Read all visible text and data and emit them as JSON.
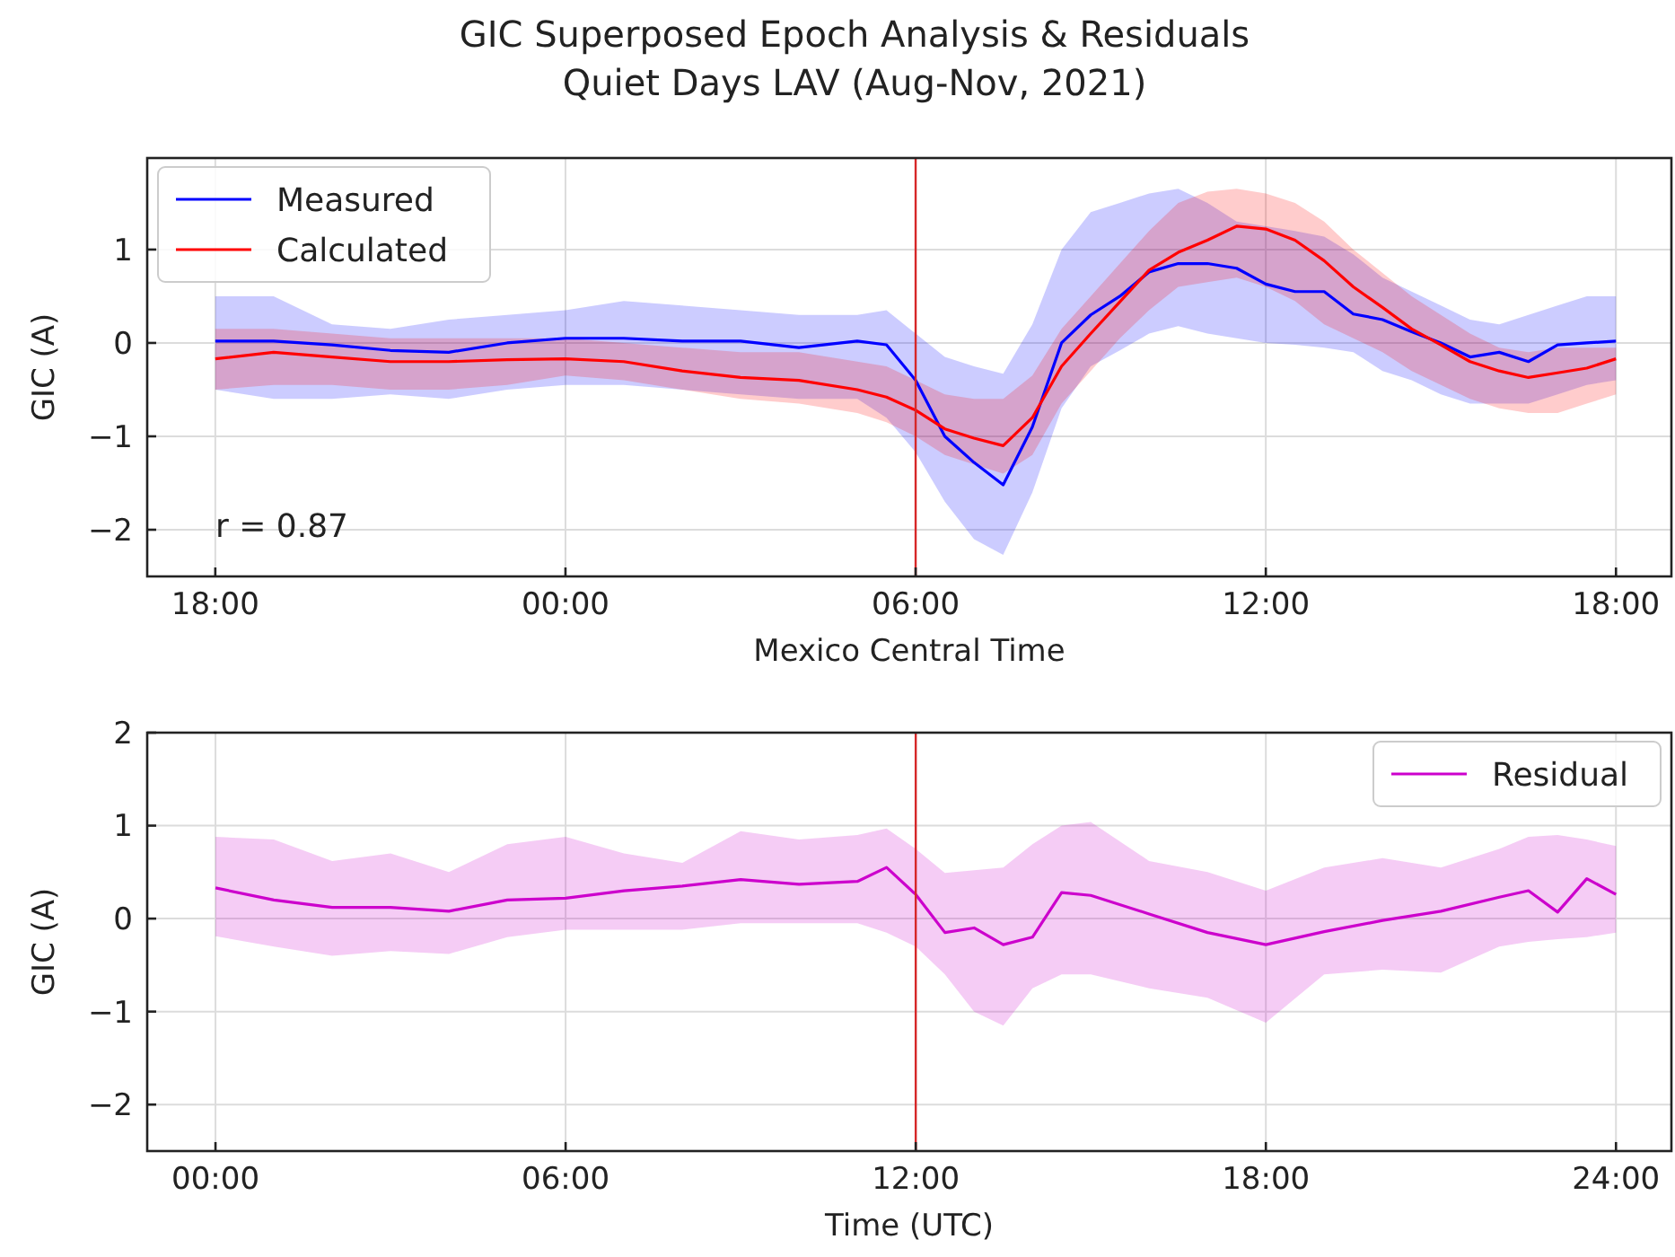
{
  "chart_data": [
    {
      "type": "line",
      "title": "GIC Superposed Epoch Analysis & Residuals",
      "subtitle": "Quiet Days LAV (Aug-Nov, 2021)",
      "xlabel": "Mexico Central Time",
      "ylabel": "GIC (A)",
      "x": [
        "2021-08-01T18:00",
        "2021-08-01T19:00",
        "2021-08-01T20:00",
        "2021-08-01T21:00",
        "2021-08-01T22:00",
        "2021-08-01T23:00",
        "2021-08-02T00:00",
        "2021-08-02T01:00",
        "2021-08-02T02:00",
        "2021-08-02T03:00",
        "2021-08-02T04:00",
        "2021-08-02T05:00",
        "2021-08-02T05:30",
        "2021-08-02T06:00",
        "2021-08-02T06:30",
        "2021-08-02T07:00",
        "2021-08-02T07:30",
        "2021-08-02T08:00",
        "2021-08-02T08:30",
        "2021-08-02T09:00",
        "2021-08-02T09:30",
        "2021-08-02T10:00",
        "2021-08-02T10:30",
        "2021-08-02T11:00",
        "2021-08-02T11:30",
        "2021-08-02T12:00",
        "2021-08-02T12:30",
        "2021-08-02T13:00",
        "2021-08-02T13:30",
        "2021-08-02T14:00",
        "2021-08-02T14:30",
        "2021-08-02T15:00",
        "2021-08-02T15:30",
        "2021-08-02T16:00",
        "2021-08-02T16:30",
        "2021-08-02T17:00",
        "2021-08-02T17:30",
        "2021-08-02T18:00"
      ],
      "series": [
        {
          "name": "Measured",
          "color": "#0000ff",
          "values": [
            0.02,
            0.02,
            -0.02,
            -0.08,
            -0.1,
            0,
            0.05,
            0.05,
            0.02,
            0.02,
            -0.05,
            0.02,
            -0.02,
            -0.4,
            -1.0,
            -1.28,
            -1.52,
            -0.9,
            0.0,
            0.3,
            0.5,
            0.76,
            0.85,
            0.85,
            0.8,
            0.63,
            0.55,
            0.55,
            0.31,
            0.25,
            0.12,
            0,
            -0.15,
            -0.1,
            -0.2,
            -0.02,
            0,
            0.02
          ],
          "lower": [
            -0.5,
            -0.6,
            -0.6,
            -0.55,
            -0.6,
            -0.5,
            -0.45,
            -0.45,
            -0.5,
            -0.55,
            -0.6,
            -0.6,
            -0.8,
            -1.17,
            -1.7,
            -2.1,
            -2.27,
            -1.6,
            -0.7,
            -0.25,
            -0.08,
            0.1,
            0.18,
            0.1,
            0.05,
            0.0,
            -0.02,
            -0.05,
            -0.1,
            -0.3,
            -0.4,
            -0.55,
            -0.65,
            -0.65,
            -0.65,
            -0.55,
            -0.45,
            -0.4
          ],
          "upper": [
            0.5,
            0.5,
            0.2,
            0.15,
            0.25,
            0.3,
            0.35,
            0.45,
            0.4,
            0.35,
            0.3,
            0.3,
            0.35,
            0.1,
            -0.15,
            -0.25,
            -0.33,
            0.2,
            1.0,
            1.4,
            1.5,
            1.6,
            1.65,
            1.5,
            1.3,
            1.25,
            1.2,
            1.14,
            0.95,
            0.7,
            0.55,
            0.4,
            0.25,
            0.2,
            0.3,
            0.4,
            0.5,
            0.5
          ]
        },
        {
          "name": "Calculated",
          "color": "#ff0000",
          "values": [
            -0.17,
            -0.1,
            -0.15,
            -0.2,
            -0.2,
            -0.18,
            -0.17,
            -0.2,
            -0.3,
            -0.37,
            -0.4,
            -0.5,
            -0.58,
            -0.72,
            -0.92,
            -1.02,
            -1.1,
            -0.8,
            -0.25,
            0.1,
            0.44,
            0.78,
            0.97,
            1.1,
            1.25,
            1.22,
            1.1,
            0.88,
            0.6,
            0.38,
            0.15,
            -0.02,
            -0.2,
            -0.3,
            -0.37,
            -0.32,
            -0.27,
            -0.17
          ],
          "lower": [
            -0.5,
            -0.45,
            -0.45,
            -0.5,
            -0.5,
            -0.45,
            -0.35,
            -0.4,
            -0.5,
            -0.6,
            -0.65,
            -0.75,
            -0.85,
            -1.0,
            -1.2,
            -1.3,
            -1.4,
            -1.2,
            -0.65,
            -0.3,
            0.05,
            0.35,
            0.6,
            0.65,
            0.7,
            0.6,
            0.45,
            0.2,
            0.05,
            -0.1,
            -0.3,
            -0.45,
            -0.6,
            -0.7,
            -0.75,
            -0.75,
            -0.65,
            -0.55
          ],
          "upper": [
            0.15,
            0.15,
            0.1,
            0.05,
            0.05,
            0.05,
            0.05,
            0.0,
            -0.05,
            -0.1,
            -0.1,
            -0.2,
            -0.25,
            -0.4,
            -0.55,
            -0.6,
            -0.6,
            -0.35,
            0.15,
            0.5,
            0.85,
            1.2,
            1.5,
            1.62,
            1.65,
            1.6,
            1.5,
            1.3,
            1.0,
            0.75,
            0.5,
            0.3,
            0.1,
            -0.05,
            -0.1,
            -0.05,
            -0.05,
            -0.05
          ]
        }
      ],
      "xlim": [
        "2021-08-01T16:50",
        "2021-08-02T18:57"
      ],
      "xticks": [
        {
          "value": "2021-08-01T18:00",
          "label": "18:00"
        },
        {
          "value": "2021-08-02T00:00",
          "label": "00:00"
        },
        {
          "value": "2021-08-02T06:00",
          "label": "06:00"
        },
        {
          "value": "2021-08-02T12:00",
          "label": "12:00"
        },
        {
          "value": "2021-08-02T18:00",
          "label": "18:00"
        }
      ],
      "ylim": [
        -2.5,
        1.98
      ],
      "yticks": [
        -2,
        -1,
        0,
        1
      ],
      "ref_lines": [
        {
          "axis": "x",
          "value": "2021-08-02T06:00",
          "color": "#d62728"
        }
      ],
      "annotations": [
        "r = 0.87"
      ],
      "grid": true,
      "legend": "top left"
    },
    {
      "type": "line",
      "xlabel": "Time (UTC)",
      "ylabel": "GIC (A)",
      "x": [
        0,
        1,
        2,
        3,
        4,
        5,
        6,
        7,
        8,
        9,
        10,
        11,
        11.5,
        12,
        12.5,
        13,
        13.5,
        14,
        14.5,
        15,
        16,
        17,
        18,
        19,
        20,
        21,
        22,
        22.5,
        23,
        23.5,
        24
      ],
      "series": [
        {
          "name": "Residual",
          "color": "#cc00cc",
          "values": [
            0.33,
            0.2,
            0.12,
            0.12,
            0.08,
            0.2,
            0.22,
            0.3,
            0.35,
            0.42,
            0.37,
            0.4,
            0.55,
            0.26,
            -0.15,
            -0.1,
            -0.28,
            -0.2,
            0.28,
            0.25,
            0.05,
            -0.15,
            -0.28,
            -0.14,
            -0.02,
            0.08,
            0.23,
            0.3,
            0.07,
            0.43,
            0.26
          ],
          "lower": [
            -0.19,
            -0.3,
            -0.4,
            -0.35,
            -0.38,
            -0.2,
            -0.12,
            -0.12,
            -0.12,
            -0.05,
            -0.05,
            -0.05,
            -0.15,
            -0.3,
            -0.6,
            -1.0,
            -1.15,
            -0.75,
            -0.6,
            -0.6,
            -0.75,
            -0.85,
            -1.12,
            -0.6,
            -0.55,
            -0.58,
            -0.3,
            -0.25,
            -0.22,
            -0.2,
            -0.15
          ],
          "upper": [
            0.88,
            0.85,
            0.62,
            0.7,
            0.5,
            0.8,
            0.88,
            0.7,
            0.6,
            0.94,
            0.85,
            0.9,
            0.97,
            0.75,
            0.49,
            0.52,
            0.55,
            0.8,
            1.0,
            1.04,
            0.62,
            0.5,
            0.3,
            0.55,
            0.65,
            0.55,
            0.75,
            0.88,
            0.9,
            0.85,
            0.78
          ]
        }
      ],
      "xlim": [
        -1.17,
        24.95
      ],
      "xticks": [
        {
          "value": 0,
          "label": "00:00"
        },
        {
          "value": 6,
          "label": "06:00"
        },
        {
          "value": 12,
          "label": "12:00"
        },
        {
          "value": 18,
          "label": "18:00"
        },
        {
          "value": 24,
          "label": "24:00"
        }
      ],
      "ylim": [
        -2.5,
        2
      ],
      "yticks": [
        -2,
        -1,
        0,
        1,
        2
      ],
      "ref_lines": [
        {
          "axis": "x",
          "value": 12,
          "color": "#d62728"
        }
      ],
      "grid": true,
      "legend": "top right"
    }
  ]
}
